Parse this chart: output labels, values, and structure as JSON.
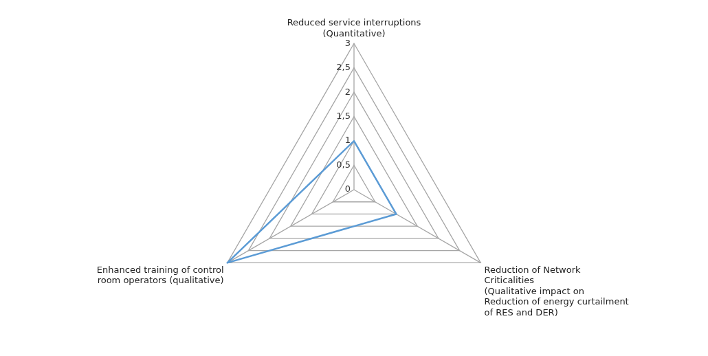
{
  "chart_data": {
    "type": "radar",
    "categories": [
      "Reduced service interruptions\n(Quantitative)",
      "Reduction of Network\nCriticalities\n(Qualitative impact on\nReduction of energy curtailment\nof RES and DER)",
      "Enhanced training of control\nroom operators (qualitative)"
    ],
    "series": [
      {
        "color": "#5b9bd5",
        "values": [
          1,
          1,
          3
        ]
      }
    ],
    "ylim": [
      0,
      3
    ],
    "yticks": [
      0,
      {
        "value": 0.5,
        "label": "0,5"
      },
      1,
      {
        "value": 1.5,
        "label": "1,5"
      },
      2,
      {
        "value": 2.5,
        "label": "2,5"
      },
      3
    ],
    "grid": true,
    "legend": false,
    "marker": "none"
  }
}
